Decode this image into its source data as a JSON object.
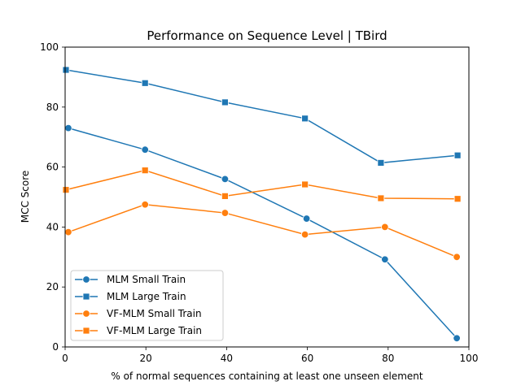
{
  "chart_data": {
    "type": "line",
    "title": "Performance on Sequence Level | TBird",
    "xlabel": "% of normal sequences containing at least one unseen element",
    "ylabel": "MCC Score",
    "xlim": [
      0,
      100
    ],
    "ylim": [
      0,
      100
    ],
    "xticks": [
      0,
      20,
      40,
      60,
      80,
      100
    ],
    "yticks": [
      0,
      20,
      40,
      60,
      80,
      100
    ],
    "grid": false,
    "legend_position": "lower-left",
    "series": [
      {
        "name": "MLM Small Train",
        "color": "#1f77b4",
        "marker": "circle",
        "points": [
          [
            0.8,
            73.0
          ],
          [
            19.8,
            65.8
          ],
          [
            39.6,
            56.0
          ],
          [
            59.8,
            42.8
          ],
          [
            79.2,
            29.2
          ],
          [
            97.0,
            2.9
          ]
        ]
      },
      {
        "name": "MLM Large Train",
        "color": "#1f77b4",
        "marker": "square",
        "points": [
          [
            0.2,
            92.4
          ],
          [
            19.8,
            88.0
          ],
          [
            39.6,
            81.6
          ],
          [
            59.4,
            76.2
          ],
          [
            78.2,
            61.4
          ],
          [
            97.2,
            63.9
          ]
        ]
      },
      {
        "name": "VF-MLM Small Train",
        "color": "#ff7f0e",
        "marker": "circle",
        "points": [
          [
            0.8,
            38.3
          ],
          [
            19.8,
            47.5
          ],
          [
            39.6,
            44.7
          ],
          [
            59.4,
            37.5
          ],
          [
            79.2,
            40.0
          ],
          [
            97.0,
            30.0
          ]
        ]
      },
      {
        "name": "VF-MLM Large Train",
        "color": "#ff7f0e",
        "marker": "square",
        "points": [
          [
            0.2,
            52.4
          ],
          [
            19.8,
            58.9
          ],
          [
            39.6,
            50.3
          ],
          [
            59.4,
            54.2
          ],
          [
            78.2,
            49.6
          ],
          [
            97.2,
            49.4
          ]
        ]
      }
    ]
  }
}
